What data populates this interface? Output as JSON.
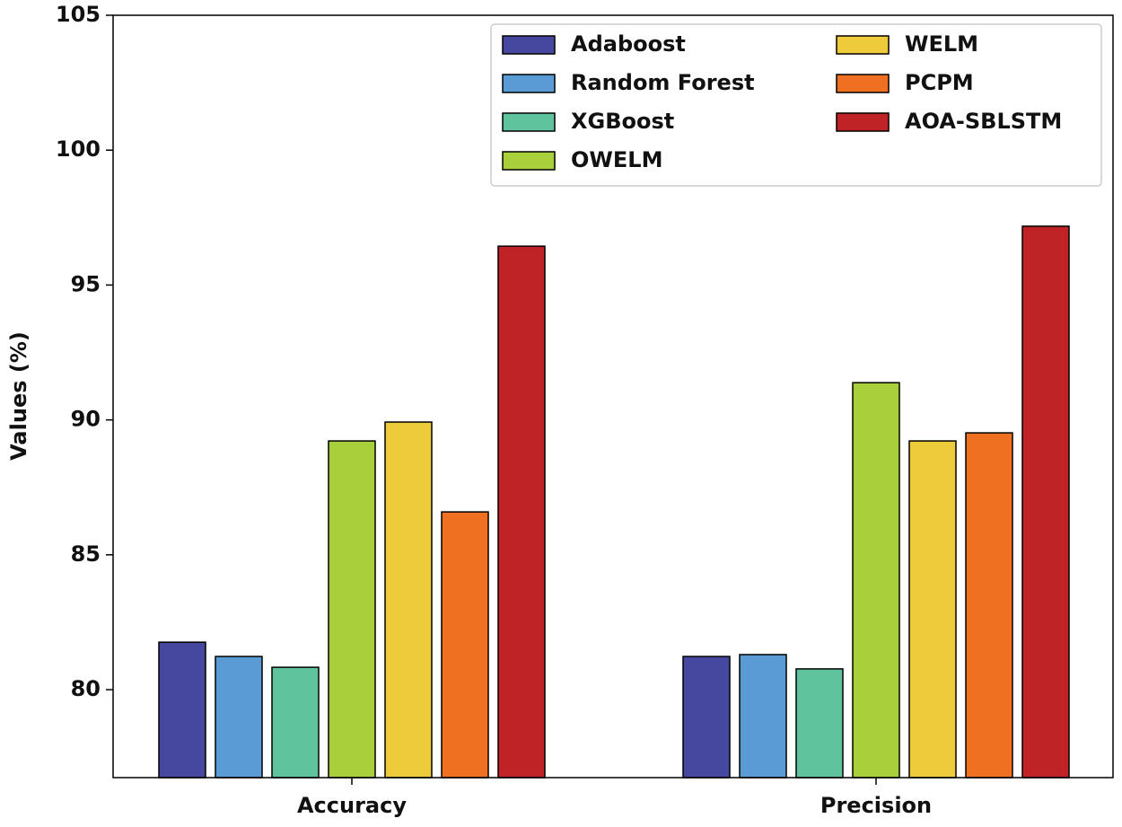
{
  "chart_data": {
    "type": "bar",
    "y_label": "Values (%)",
    "categories": [
      "Accuracy",
      "Precision"
    ],
    "series": [
      {
        "name": "Adaboost",
        "color": "#46479e",
        "values": [
          81.76,
          81.23
        ]
      },
      {
        "name": "Random Forest",
        "color": "#5b9bd5",
        "values": [
          81.23,
          81.3
        ]
      },
      {
        "name": "XGBoost",
        "color": "#5fc49e",
        "values": [
          80.83,
          80.77
        ]
      },
      {
        "name": "OWELM",
        "color": "#a9cf3a",
        "values": [
          89.22,
          91.38
        ]
      },
      {
        "name": "WELM",
        "color": "#eecb3a",
        "values": [
          89.92,
          89.22
        ]
      },
      {
        "name": "PCPM",
        "color": "#f07022",
        "values": [
          86.59,
          89.52
        ]
      },
      {
        "name": "AOA-SBLSTM",
        "color": "#bf2326",
        "values": [
          96.44,
          97.18
        ]
      }
    ],
    "ylim": [
      76.74,
      105
    ],
    "yticks": [
      80,
      85,
      90,
      95,
      100,
      105
    ],
    "legend": "upper right"
  }
}
